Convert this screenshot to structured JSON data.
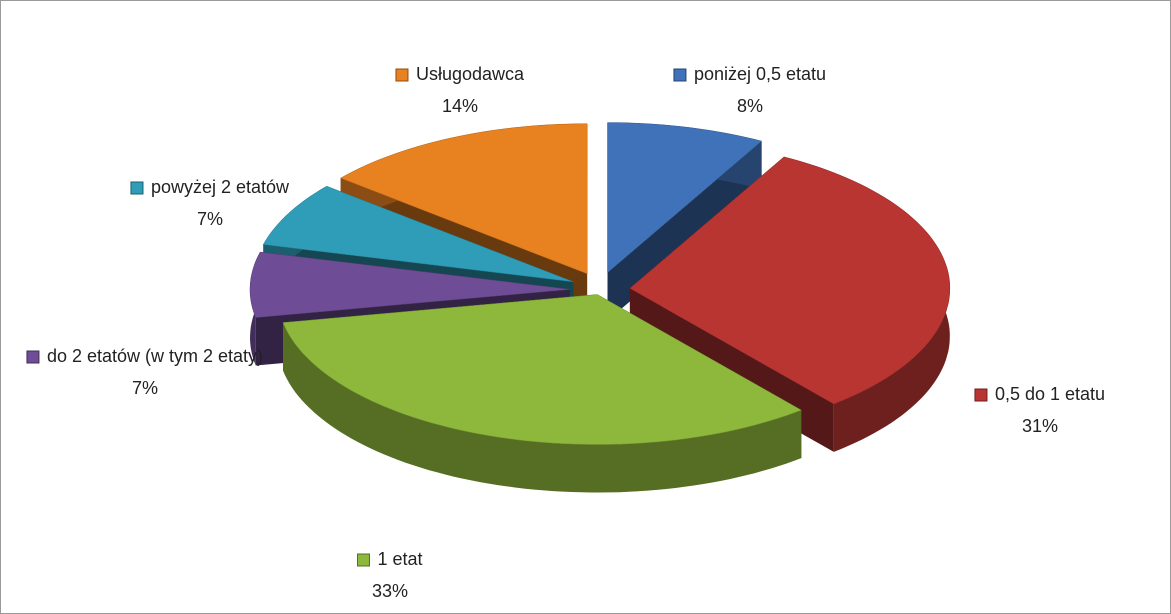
{
  "chart_data": {
    "type": "pie",
    "categories": [
      "poniżej 0,5 etatu",
      "0,5 do 1 etatu",
      "1 etat",
      "do 2 etatów (w tym 2 etaty)",
      "powyżej 2 etatów",
      "Usługodawca"
    ],
    "values": [
      8,
      31,
      33,
      7,
      7,
      14
    ],
    "value_labels": [
      "8%",
      "31%",
      "33%",
      "7%",
      "7%",
      "14%"
    ],
    "colors": [
      "#3f72b8",
      "#b83532",
      "#8db83c",
      "#6e4d96",
      "#2f9db8",
      "#e8811f"
    ]
  }
}
